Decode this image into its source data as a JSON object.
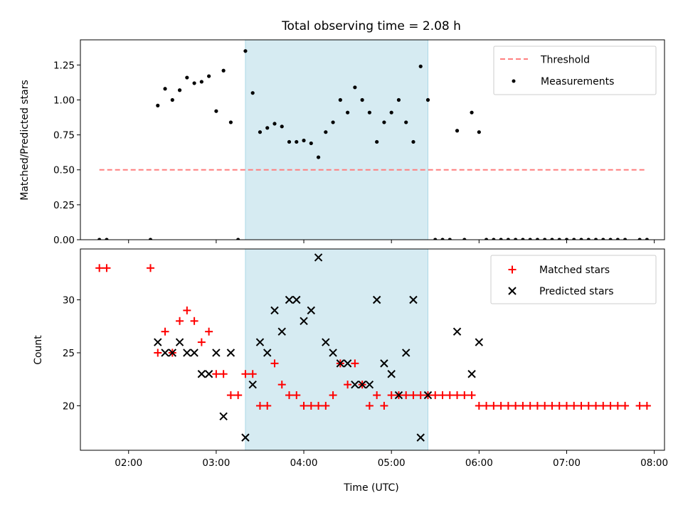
{
  "chart_data": [
    {
      "type": "scatter",
      "title": "Total observing time = 2.08 h",
      "xlabel": "",
      "ylabel": "Matched/Predicted stars",
      "ylim": [
        0,
        1.43
      ],
      "xlim": [
        "01:27",
        "08:07"
      ],
      "yticks": [
        "0.00",
        "0.25",
        "0.50",
        "0.75",
        "1.00",
        "1.25"
      ],
      "shaded_interval": [
        "03:20",
        "05:25"
      ],
      "shade_color": "#add8e6",
      "threshold": {
        "name": "Threshold",
        "value": 0.5,
        "x_range": [
          "01:40",
          "07:55"
        ],
        "color": "#ff7f7f"
      },
      "legend": {
        "position": "top-right",
        "entries": [
          "Threshold",
          "Measurements"
        ]
      },
      "series": [
        {
          "name": "Measurements",
          "color": "#000000",
          "points": [
            [
              "01:40",
              0
            ],
            [
              "01:45",
              0
            ],
            [
              "02:15",
              0
            ],
            [
              "02:20",
              0.96
            ],
            [
              "02:25",
              1.08
            ],
            [
              "02:30",
              1.0
            ],
            [
              "02:35",
              1.07
            ],
            [
              "02:40",
              1.16
            ],
            [
              "02:45",
              1.12
            ],
            [
              "02:50",
              1.13
            ],
            [
              "02:55",
              1.17
            ],
            [
              "03:00",
              0.92
            ],
            [
              "03:05",
              1.21
            ],
            [
              "03:10",
              0.84
            ],
            [
              "03:15",
              0
            ],
            [
              "03:20",
              1.35
            ],
            [
              "03:25",
              1.05
            ],
            [
              "03:30",
              0.77
            ],
            [
              "03:35",
              0.8
            ],
            [
              "03:40",
              0.83
            ],
            [
              "03:45",
              0.81
            ],
            [
              "03:50",
              0.7
            ],
            [
              "03:55",
              0.7
            ],
            [
              "04:00",
              0.71
            ],
            [
              "04:05",
              0.69
            ],
            [
              "04:10",
              0.59
            ],
            [
              "04:15",
              0.77
            ],
            [
              "04:20",
              0.84
            ],
            [
              "04:25",
              1.0
            ],
            [
              "04:30",
              0.91
            ],
            [
              "04:35",
              1.09
            ],
            [
              "04:40",
              1.0
            ],
            [
              "04:45",
              0.91
            ],
            [
              "04:50",
              0.7
            ],
            [
              "04:55",
              0.84
            ],
            [
              "05:00",
              0.91
            ],
            [
              "05:05",
              1.0
            ],
            [
              "05:10",
              0.84
            ],
            [
              "05:15",
              0.7
            ],
            [
              "05:20",
              1.24
            ],
            [
              "05:25",
              1.0
            ],
            [
              "05:30",
              0
            ],
            [
              "05:35",
              0
            ],
            [
              "05:40",
              0
            ],
            [
              "05:50",
              0
            ],
            [
              "05:55",
              0.91
            ],
            [
              "05:45",
              0.78
            ],
            [
              "06:00",
              0.77
            ],
            [
              "06:05",
              0
            ],
            [
              "06:10",
              0
            ],
            [
              "06:15",
              0
            ],
            [
              "06:20",
              0
            ],
            [
              "06:25",
              0
            ],
            [
              "06:30",
              0
            ],
            [
              "06:35",
              0
            ],
            [
              "06:40",
              0
            ],
            [
              "06:45",
              0
            ],
            [
              "06:50",
              0
            ],
            [
              "06:55",
              0
            ],
            [
              "07:00",
              0
            ],
            [
              "07:05",
              0
            ],
            [
              "07:10",
              0
            ],
            [
              "07:15",
              0
            ],
            [
              "07:20",
              0
            ],
            [
              "07:25",
              0
            ],
            [
              "07:30",
              0
            ],
            [
              "07:35",
              0
            ],
            [
              "07:40",
              0
            ],
            [
              "07:50",
              0
            ],
            [
              "07:55",
              0
            ]
          ]
        }
      ]
    },
    {
      "type": "scatter",
      "title": "",
      "xlabel": "Time (UTC)",
      "ylabel": "Count",
      "ylim": [
        15.8,
        34.8
      ],
      "xlim": [
        "01:27",
        "08:07"
      ],
      "yticks": [
        "20",
        "25",
        "30"
      ],
      "xticks": [
        "02:00",
        "03:00",
        "04:00",
        "05:00",
        "06:00",
        "07:00",
        "08:00"
      ],
      "shaded_interval": [
        "03:20",
        "05:25"
      ],
      "shade_color": "#add8e6",
      "legend": {
        "position": "top-right",
        "entries": [
          "Matched stars",
          "Predicted stars"
        ]
      },
      "series": [
        {
          "name": "Matched stars",
          "marker": "+",
          "color": "#ff0000",
          "points": [
            [
              "01:40",
              33
            ],
            [
              "01:45",
              33
            ],
            [
              "02:15",
              33
            ],
            [
              "02:20",
              25
            ],
            [
              "02:25",
              27
            ],
            [
              "02:30",
              25
            ],
            [
              "02:35",
              28
            ],
            [
              "02:40",
              29
            ],
            [
              "02:45",
              28
            ],
            [
              "02:50",
              26
            ],
            [
              "02:55",
              27
            ],
            [
              "03:00",
              23
            ],
            [
              "03:05",
              23
            ],
            [
              "03:10",
              21
            ],
            [
              "03:15",
              21
            ],
            [
              "03:20",
              23
            ],
            [
              "03:25",
              23
            ],
            [
              "03:30",
              20
            ],
            [
              "03:35",
              20
            ],
            [
              "03:40",
              24
            ],
            [
              "03:45",
              22
            ],
            [
              "03:50",
              21
            ],
            [
              "03:55",
              21
            ],
            [
              "04:00",
              20
            ],
            [
              "04:05",
              20
            ],
            [
              "04:10",
              20
            ],
            [
              "04:15",
              20
            ],
            [
              "04:20",
              21
            ],
            [
              "04:25",
              24
            ],
            [
              "04:30",
              22
            ],
            [
              "04:35",
              24
            ],
            [
              "04:40",
              22
            ],
            [
              "04:45",
              20
            ],
            [
              "04:50",
              21
            ],
            [
              "04:55",
              20
            ],
            [
              "05:00",
              21
            ],
            [
              "05:05",
              21
            ],
            [
              "05:10",
              21
            ],
            [
              "05:15",
              21
            ],
            [
              "05:20",
              21
            ],
            [
              "05:25",
              21
            ],
            [
              "05:30",
              21
            ],
            [
              "05:35",
              21
            ],
            [
              "05:40",
              21
            ],
            [
              "05:45",
              21
            ],
            [
              "05:50",
              21
            ],
            [
              "05:55",
              21
            ],
            [
              "06:00",
              20
            ],
            [
              "06:05",
              20
            ],
            [
              "06:10",
              20
            ],
            [
              "06:15",
              20
            ],
            [
              "06:20",
              20
            ],
            [
              "06:25",
              20
            ],
            [
              "06:30",
              20
            ],
            [
              "06:35",
              20
            ],
            [
              "06:40",
              20
            ],
            [
              "06:45",
              20
            ],
            [
              "06:50",
              20
            ],
            [
              "06:55",
              20
            ],
            [
              "07:00",
              20
            ],
            [
              "07:05",
              20
            ],
            [
              "07:10",
              20
            ],
            [
              "07:15",
              20
            ],
            [
              "07:20",
              20
            ],
            [
              "07:25",
              20
            ],
            [
              "07:30",
              20
            ],
            [
              "07:35",
              20
            ],
            [
              "07:40",
              20
            ],
            [
              "07:50",
              20
            ],
            [
              "07:55",
              20
            ]
          ]
        },
        {
          "name": "Predicted stars",
          "marker": "x",
          "color": "#000000",
          "points": [
            [
              "02:20",
              26
            ],
            [
              "02:25",
              25
            ],
            [
              "02:30",
              25
            ],
            [
              "02:35",
              26
            ],
            [
              "02:40",
              25
            ],
            [
              "02:45",
              25
            ],
            [
              "02:50",
              23
            ],
            [
              "02:55",
              23
            ],
            [
              "03:00",
              25
            ],
            [
              "03:05",
              19
            ],
            [
              "03:10",
              25
            ],
            [
              "03:20",
              17
            ],
            [
              "03:25",
              22
            ],
            [
              "03:30",
              26
            ],
            [
              "03:35",
              25
            ],
            [
              "03:40",
              29
            ],
            [
              "03:45",
              27
            ],
            [
              "03:50",
              30
            ],
            [
              "03:55",
              30
            ],
            [
              "04:00",
              28
            ],
            [
              "04:05",
              29
            ],
            [
              "04:10",
              34
            ],
            [
              "04:15",
              26
            ],
            [
              "04:20",
              25
            ],
            [
              "04:25",
              24
            ],
            [
              "04:30",
              24
            ],
            [
              "04:35",
              22
            ],
            [
              "04:40",
              22
            ],
            [
              "04:45",
              22
            ],
            [
              "04:50",
              30
            ],
            [
              "04:55",
              24
            ],
            [
              "05:00",
              23
            ],
            [
              "05:05",
              21
            ],
            [
              "05:10",
              25
            ],
            [
              "05:15",
              30
            ],
            [
              "05:20",
              17
            ],
            [
              "05:25",
              21
            ],
            [
              "05:45",
              27
            ],
            [
              "05:55",
              23
            ],
            [
              "06:00",
              26
            ]
          ]
        }
      ]
    }
  ]
}
